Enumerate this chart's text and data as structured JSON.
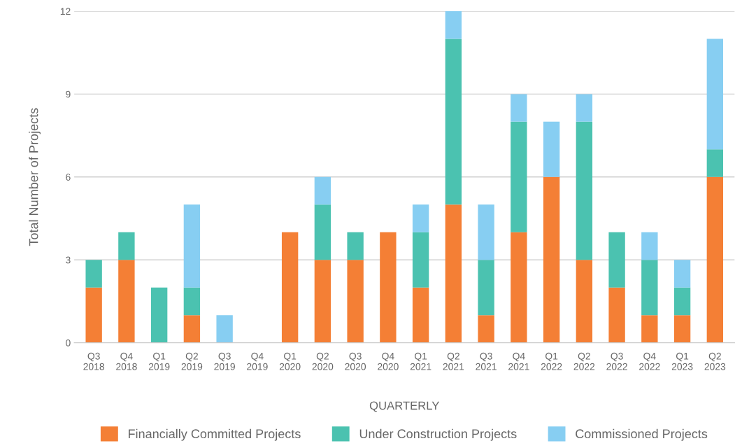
{
  "chart_data": {
    "type": "bar",
    "stacked": true,
    "xlabel": "QUARTERLY",
    "ylabel": "Total Number of Projects",
    "categories": [
      "Q3\n2018",
      "Q4\n2018",
      "Q1\n2019",
      "Q2\n2019",
      "Q3\n2019",
      "Q4\n2019",
      "Q1\n2020",
      "Q2\n2020",
      "Q3\n2020",
      "Q4\n2020",
      "Q1\n2021",
      "Q2\n2021",
      "Q3\n2021",
      "Q4\n2021",
      "Q1\n2022",
      "Q2\n2022",
      "Q3\n2022",
      "Q4\n2022",
      "Q1\n2023",
      "Q2\n2023"
    ],
    "series": [
      {
        "name": "Financially Committed Projects",
        "color": "#f47f35",
        "values": [
          2,
          3,
          0,
          1,
          0,
          0,
          4,
          3,
          3,
          4,
          2,
          5,
          1,
          4,
          6,
          3,
          2,
          1,
          1,
          6
        ]
      },
      {
        "name": "Under Construction Projects",
        "color": "#4bc2b0",
        "values": [
          1,
          1,
          2,
          1,
          0,
          0,
          0,
          2,
          1,
          0,
          2,
          6,
          2,
          4,
          0,
          5,
          2,
          2,
          1,
          1
        ]
      },
      {
        "name": "Commissioned Projects",
        "color": "#87cef2",
        "values": [
          0,
          0,
          0,
          3,
          1,
          0,
          0,
          1,
          0,
          0,
          1,
          1,
          2,
          1,
          2,
          1,
          0,
          1,
          1,
          4
        ]
      }
    ],
    "ylim": [
      0,
      12
    ],
    "yticks": [
      0,
      3,
      6,
      9,
      12
    ],
    "grid": "y",
    "legend": "bottom"
  }
}
